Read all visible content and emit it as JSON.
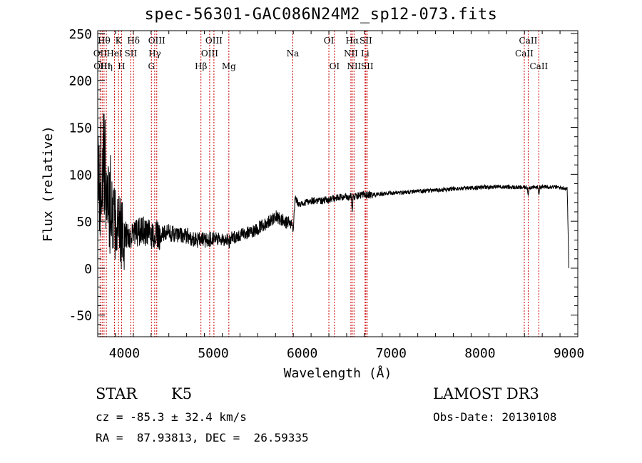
{
  "header": {
    "title": "spec-56301-GAC086N24M2_sp12-073.fits"
  },
  "info": {
    "object_class": "STAR",
    "subclass": "K5",
    "survey": "LAMOST DR3",
    "redshift": "cz = -85.3 ± 32.4 km/s",
    "obs_date": "Obs-Date: 20130108",
    "coords": "RA =  87.93813, DEC =  26.59335"
  },
  "colors": {
    "line": "#000000",
    "marker": "#cc0000",
    "axis": "#000000"
  },
  "chart_data": {
    "type": "line",
    "title": "spec-56301-GAC086N24M2_sp12-073.fits",
    "xlabel": "Wavelength (Å)",
    "ylabel": "Flux (relative)",
    "xlim": [
      3700,
      9100
    ],
    "ylim": [
      -73,
      253
    ],
    "xticks": [
      4000,
      5000,
      6000,
      7000,
      8000,
      9000
    ],
    "yticks": [
      -50,
      0,
      50,
      100,
      150,
      200,
      250
    ],
    "grid": false,
    "spectrum_anchors": [
      [
        3700,
        80
      ],
      [
        3760,
        110
      ],
      [
        3800,
        90
      ],
      [
        3850,
        60
      ],
      [
        3900,
        45
      ],
      [
        3950,
        38
      ],
      [
        4000,
        35
      ],
      [
        4100,
        35
      ],
      [
        4200,
        40
      ],
      [
        4300,
        35
      ],
      [
        4400,
        35
      ],
      [
        4500,
        38
      ],
      [
        4600,
        35
      ],
      [
        4700,
        35
      ],
      [
        4800,
        30
      ],
      [
        4900,
        30
      ],
      [
        5000,
        32
      ],
      [
        5100,
        30
      ],
      [
        5200,
        32
      ],
      [
        5300,
        35
      ],
      [
        5400,
        38
      ],
      [
        5500,
        42
      ],
      [
        5600,
        48
      ],
      [
        5700,
        55
      ],
      [
        5800,
        50
      ],
      [
        5900,
        45
      ],
      [
        5920,
        75
      ],
      [
        5950,
        70
      ],
      [
        6000,
        68
      ],
      [
        6100,
        72
      ],
      [
        6200,
        72
      ],
      [
        6300,
        73
      ],
      [
        6400,
        75
      ],
      [
        6500,
        76
      ],
      [
        6600,
        77
      ],
      [
        6700,
        78
      ],
      [
        6800,
        78
      ],
      [
        7000,
        80
      ],
      [
        7200,
        81
      ],
      [
        7500,
        83
      ],
      [
        7800,
        85
      ],
      [
        8000,
        86
      ],
      [
        8200,
        87
      ],
      [
        8400,
        86
      ],
      [
        8600,
        86
      ],
      [
        8800,
        87
      ],
      [
        8980,
        85
      ],
      [
        9000,
        0
      ]
    ],
    "absorption_dips": [
      {
        "wavelength": 5177,
        "depth": 6
      },
      {
        "wavelength": 5895,
        "depth": 8
      },
      {
        "wavelength": 6563,
        "depth": 20
      },
      {
        "wavelength": 8542,
        "depth": 8
      },
      {
        "wavelength": 8662,
        "depth": 8
      }
    ],
    "lines": [
      {
        "wavelength": 3727,
        "label": "OII",
        "row": 1
      },
      {
        "wavelength": 3750,
        "label": "OIII",
        "row": 2
      },
      {
        "wavelength": 3771,
        "label": "Hθ",
        "row": 0
      },
      {
        "wavelength": 3797,
        "label": "Hη",
        "row": 2
      },
      {
        "wavelength": 3889,
        "label": "HeI",
        "row": 1
      },
      {
        "wavelength": 3934,
        "label": "K",
        "row": 0
      },
      {
        "wavelength": 3968,
        "label": "H",
        "row": 2
      },
      {
        "wavelength": 4072,
        "label": "SII",
        "row": 1
      },
      {
        "wavelength": 4102,
        "label": "Hδ",
        "row": 0
      },
      {
        "wavelength": 4304,
        "label": "G",
        "row": 2
      },
      {
        "wavelength": 4341,
        "label": "Hγ",
        "row": 1
      },
      {
        "wavelength": 4364,
        "label": "OIII",
        "row": 0
      },
      {
        "wavelength": 4861,
        "label": "Hβ",
        "row": 2
      },
      {
        "wavelength": 4959,
        "label": "OIII",
        "row": 1
      },
      {
        "wavelength": 5007,
        "label": "OIII",
        "row": 0
      },
      {
        "wavelength": 5175,
        "label": "Mg",
        "row": 2
      },
      {
        "wavelength": 5894,
        "label": "Na",
        "row": 1
      },
      {
        "wavelength": 6300,
        "label": "OI",
        "row": 0
      },
      {
        "wavelength": 6363,
        "label": "OI",
        "row": 2
      },
      {
        "wavelength": 6548,
        "label": "NII",
        "row": 1
      },
      {
        "wavelength": 6563,
        "label": "Hα",
        "row": 0
      },
      {
        "wavelength": 6583,
        "label": "NII",
        "row": 2
      },
      {
        "wavelength": 6707,
        "label": "Li",
        "row": 1
      },
      {
        "wavelength": 6716,
        "label": "SII",
        "row": 0
      },
      {
        "wavelength": 6731,
        "label": "SII",
        "row": 2
      },
      {
        "wavelength": 8498,
        "label": "CaII",
        "row": 1
      },
      {
        "wavelength": 8542,
        "label": "CaII",
        "row": 0
      },
      {
        "wavelength": 8662,
        "label": "CaII",
        "row": 2
      }
    ]
  }
}
